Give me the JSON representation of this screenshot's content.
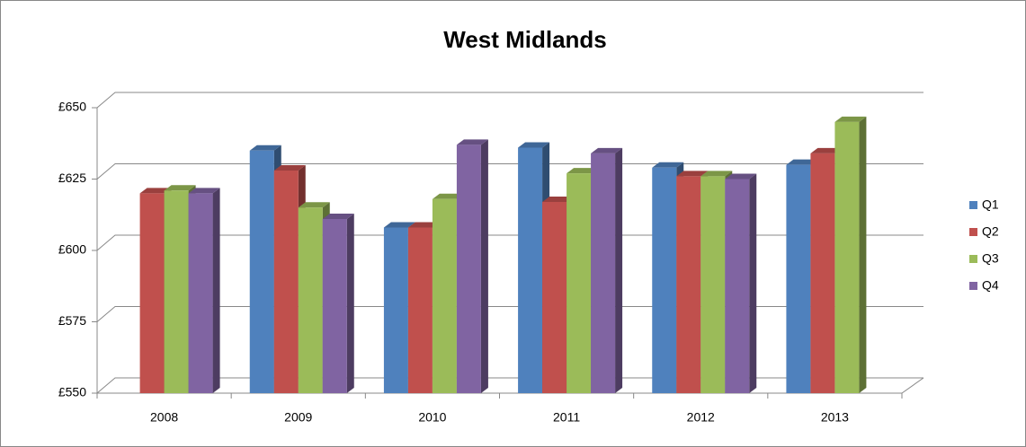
{
  "chart_data": {
    "type": "bar3d",
    "title": "West Midlands",
    "categories": [
      "2008",
      "2009",
      "2010",
      "2011",
      "2012",
      "2013"
    ],
    "series": [
      {
        "name": "Q1",
        "color": "#4f81bd",
        "values": [
          null,
          635,
          608,
          636,
          629,
          630
        ]
      },
      {
        "name": "Q2",
        "color": "#c0504d",
        "values": [
          620,
          628,
          608,
          617,
          626,
          634
        ]
      },
      {
        "name": "Q3",
        "color": "#9bbb59",
        "values": [
          621,
          615,
          618,
          627,
          626,
          645
        ]
      },
      {
        "name": "Q4",
        "color": "#8064a2",
        "values": [
          620,
          611,
          637,
          634,
          625,
          null
        ]
      }
    ],
    "ylim": [
      550,
      650
    ],
    "yticks": [
      {
        "value": 550,
        "label": "£550"
      },
      {
        "value": 575,
        "label": "£575"
      },
      {
        "value": 600,
        "label": "£600"
      },
      {
        "value": 625,
        "label": "£625"
      },
      {
        "value": 650,
        "label": "£650"
      }
    ],
    "grid": true,
    "legend": "right"
  }
}
